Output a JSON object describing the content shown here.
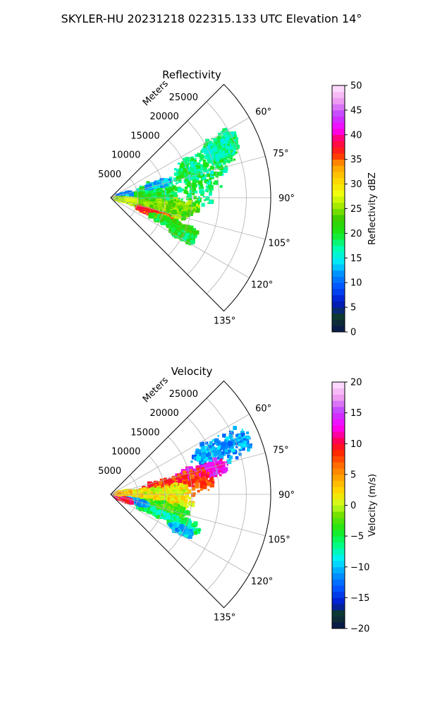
{
  "figure": {
    "title": "SKYLER-HU  20231218  022315.133 UTC Elevation 14°"
  },
  "chart_data": [
    {
      "type": "heatmap",
      "projection": "polar-sector",
      "title": "Reflectivity",
      "radial_label": "Meters",
      "radial_ticks": [
        5000,
        10000,
        15000,
        20000,
        25000
      ],
      "radial_tick_labels": [
        "5000",
        "10000",
        "15000",
        "20000",
        "25000"
      ],
      "r_max": 29500,
      "angle_range_deg": [
        45,
        135
      ],
      "angle_ticks": [
        60,
        75,
        90,
        105,
        120,
        135
      ],
      "angle_tick_labels": [
        "60°",
        "75°",
        "90°",
        "105°",
        "120°",
        "135°"
      ],
      "grid": true,
      "colorbar": {
        "label": "Reflectivity dBZ",
        "min": 0,
        "max": 50,
        "ticks": [
          0,
          5,
          10,
          15,
          20,
          25,
          30,
          35,
          40,
          45,
          50
        ],
        "tick_labels": [
          "0",
          "5",
          "10",
          "15",
          "20",
          "25",
          "30",
          "35",
          "40",
          "45",
          "50"
        ],
        "colormap": [
          [
            0.0,
            "#0a1450"
          ],
          [
            0.06,
            "#0e3a2a"
          ],
          [
            0.12,
            "#0018c8"
          ],
          [
            0.18,
            "#0050ff"
          ],
          [
            0.24,
            "#0096ff"
          ],
          [
            0.28,
            "#00e6ff"
          ],
          [
            0.34,
            "#00ffb0"
          ],
          [
            0.4,
            "#18e818"
          ],
          [
            0.46,
            "#3ccc00"
          ],
          [
            0.52,
            "#b4f000"
          ],
          [
            0.56,
            "#f0ff10"
          ],
          [
            0.62,
            "#ffd200"
          ],
          [
            0.68,
            "#ff9a00"
          ],
          [
            0.72,
            "#ff2a00"
          ],
          [
            0.78,
            "#ff0060"
          ],
          [
            0.82,
            "#ff00ff"
          ],
          [
            0.88,
            "#c040ff"
          ],
          [
            0.94,
            "#f0a0f0"
          ],
          [
            1.0,
            "#ffe8ff"
          ]
        ]
      },
      "regions": [
        {
          "az": 82,
          "r": 12000,
          "da": 14,
          "dr": 9000,
          "value": 19
        },
        {
          "az": 70,
          "r": 18500,
          "da": 9,
          "dr": 6000,
          "value": 18
        },
        {
          "az": 65,
          "r": 22500,
          "da": 6,
          "dr": 3500,
          "value": 17
        },
        {
          "az": 88,
          "r": 7500,
          "da": 10,
          "dr": 5000,
          "value": 20
        },
        {
          "az": 97,
          "r": 11000,
          "da": 6,
          "dr": 5500,
          "value": 24
        },
        {
          "az": 103,
          "r": 9000,
          "da": 7,
          "dr": 6000,
          "value": 24
        },
        {
          "az": 110,
          "r": 8500,
          "da": 3.5,
          "dr": 3800,
          "value": 36
        },
        {
          "az": 113,
          "r": 12500,
          "da": 4,
          "dr": 5000,
          "value": 21
        },
        {
          "az": 118,
          "r": 15000,
          "da": 3,
          "dr": 2500,
          "value": 20
        },
        {
          "az": 80,
          "r": 2500,
          "da": 8,
          "dr": 1500,
          "value": 12
        },
        {
          "az": 74,
          "r": 9000,
          "da": 3,
          "dr": 2200,
          "value": 13
        },
        {
          "az": 98,
          "r": 3000,
          "da": 7,
          "dr": 2500,
          "value": 26
        }
      ]
    },
    {
      "type": "heatmap",
      "projection": "polar-sector",
      "title": "Velocity",
      "radial_label": "Meters",
      "radial_ticks": [
        5000,
        10000,
        15000,
        20000,
        25000
      ],
      "radial_tick_labels": [
        "5000",
        "10000",
        "15000",
        "20000",
        "25000"
      ],
      "r_max": 29500,
      "angle_range_deg": [
        45,
        135
      ],
      "angle_ticks": [
        60,
        75,
        90,
        105,
        120,
        135
      ],
      "angle_tick_labels": [
        "60°",
        "75°",
        "90°",
        "105°",
        "120°",
        "135°"
      ],
      "grid": true,
      "colorbar": {
        "label": "Velocity (m/s)",
        "min": -20,
        "max": 20,
        "ticks": [
          -20,
          -15,
          -10,
          -5,
          0,
          5,
          10,
          15,
          20
        ],
        "tick_labels": [
          "−20",
          "−15",
          "−10",
          "−5",
          "0",
          "5",
          "10",
          "15",
          "20"
        ],
        "colormap": [
          [
            0.0,
            "#0a1450"
          ],
          [
            0.06,
            "#0e3a2a"
          ],
          [
            0.1,
            "#0018c8"
          ],
          [
            0.16,
            "#0050ff"
          ],
          [
            0.22,
            "#0096ff"
          ],
          [
            0.28,
            "#00f0ff"
          ],
          [
            0.34,
            "#00ff80"
          ],
          [
            0.4,
            "#18e818"
          ],
          [
            0.46,
            "#70e000"
          ],
          [
            0.5,
            "#c8ff20"
          ],
          [
            0.55,
            "#ffe000"
          ],
          [
            0.6,
            "#ffb000"
          ],
          [
            0.66,
            "#ff7000"
          ],
          [
            0.72,
            "#ff2000"
          ],
          [
            0.76,
            "#ff0050"
          ],
          [
            0.82,
            "#ff00ff"
          ],
          [
            0.88,
            "#c040ff"
          ],
          [
            0.94,
            "#f0a0f0"
          ],
          [
            1.0,
            "#ffe8ff"
          ]
        ]
      },
      "regions": [
        {
          "az": 68,
          "r": 22000,
          "da": 7,
          "dr": 6000,
          "value": -11
        },
        {
          "az": 76,
          "r": 17500,
          "da": 5,
          "dr": 5000,
          "value": 13
        },
        {
          "az": 82,
          "r": 12500,
          "da": 9,
          "dr": 7000,
          "value": 8
        },
        {
          "az": 88,
          "r": 9000,
          "da": 8,
          "dr": 6000,
          "value": 1
        },
        {
          "az": 97,
          "r": 10000,
          "da": 7,
          "dr": 6000,
          "value": 2
        },
        {
          "az": 104,
          "r": 9500,
          "da": 6,
          "dr": 5500,
          "value": -3
        },
        {
          "az": 112,
          "r": 11000,
          "da": 5,
          "dr": 7000,
          "value": -6
        },
        {
          "az": 117,
          "r": 14500,
          "da": 3,
          "dr": 2500,
          "value": -10
        },
        {
          "az": 106,
          "r": 4500,
          "da": 4,
          "dr": 3000,
          "value": -11
        },
        {
          "az": 110,
          "r": 2500,
          "da": 4,
          "dr": 1800,
          "value": 10
        },
        {
          "az": 84,
          "r": 2500,
          "da": 6,
          "dr": 1500,
          "value": 3
        }
      ]
    }
  ]
}
